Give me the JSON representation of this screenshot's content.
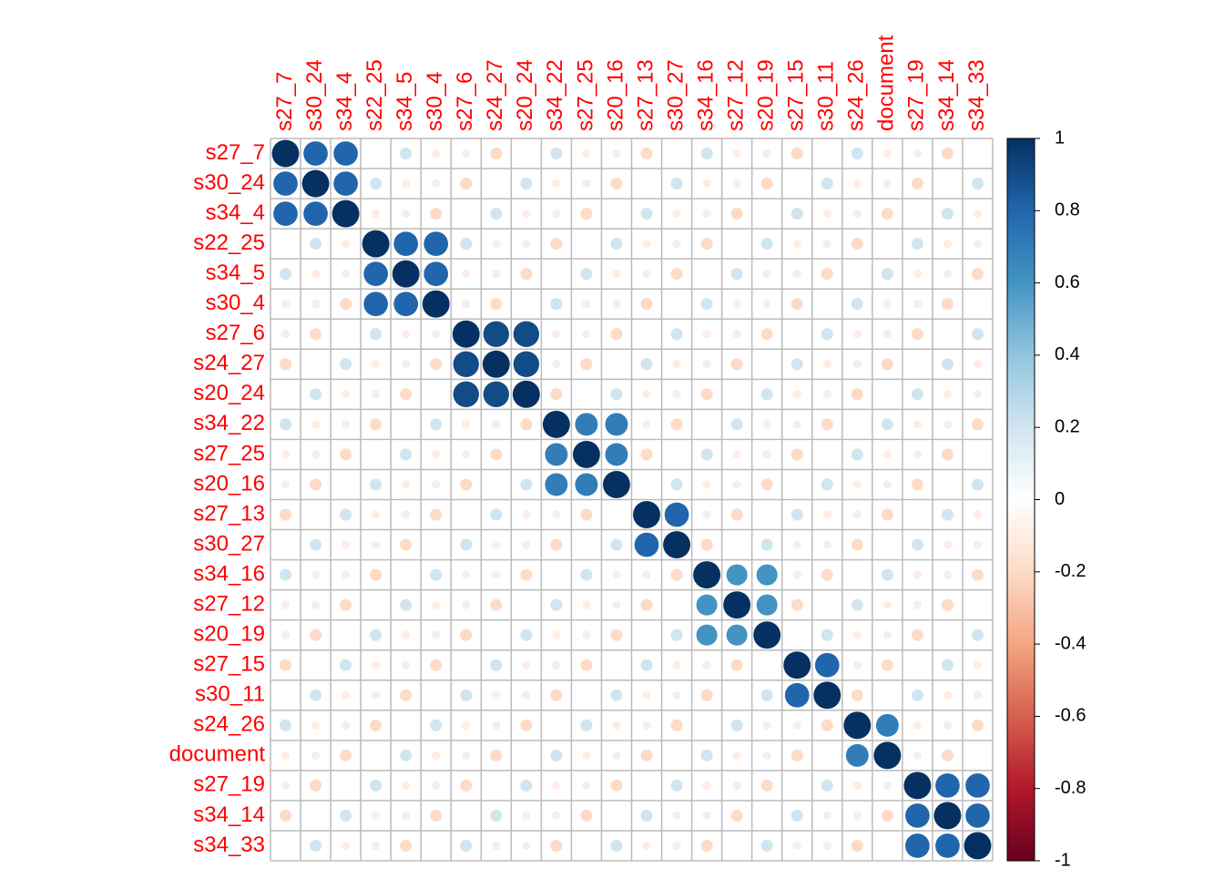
{
  "chart_data": {
    "type": "corrplot",
    "variables": [
      "s27_7",
      "s30_24",
      "s34_4",
      "s22_25",
      "s34_5",
      "s30_4",
      "s27_6",
      "s24_27",
      "s20_24",
      "s34_22",
      "s27_25",
      "s20_16",
      "s27_13",
      "s30_27",
      "s34_16",
      "s27_12",
      "s20_19",
      "s27_15",
      "s30_11",
      "s24_26",
      "document",
      "s27_19",
      "s34_14",
      "s34_33"
    ],
    "matrix": [
      [
        1,
        0.8,
        0.8,
        0,
        0.2,
        -0.1,
        0.1,
        -0.2,
        0,
        0.2,
        -0.1,
        0.1,
        -0.2,
        0,
        0.2,
        -0.1,
        0.1,
        -0.2,
        0,
        0.2,
        -0.1,
        0.1,
        -0.2,
        0
      ],
      [
        0.8,
        1,
        0.8,
        0.2,
        -0.1,
        0.1,
        -0.2,
        0,
        0.2,
        -0.1,
        0.1,
        -0.2,
        0,
        0.2,
        -0.1,
        0.1,
        -0.2,
        0,
        0.2,
        -0.1,
        0.1,
        -0.2,
        0,
        0.2
      ],
      [
        0.8,
        0.8,
        1,
        -0.1,
        0.1,
        -0.2,
        0,
        0.2,
        -0.1,
        0.1,
        -0.2,
        0,
        0.2,
        -0.1,
        0.1,
        -0.2,
        0,
        0.2,
        -0.1,
        0.1,
        -0.2,
        0,
        0.2,
        -0.1
      ],
      [
        0,
        0.2,
        -0.1,
        1,
        0.8,
        0.8,
        0.2,
        -0.1,
        0.1,
        -0.2,
        0,
        0.2,
        -0.1,
        0.1,
        -0.2,
        0,
        0.2,
        -0.1,
        0.1,
        -0.2,
        0,
        0.2,
        -0.1,
        0.1
      ],
      [
        0.2,
        -0.1,
        0.1,
        0.8,
        1,
        0.8,
        -0.1,
        0.1,
        -0.2,
        0,
        0.2,
        -0.1,
        0.1,
        -0.2,
        0,
        0.2,
        -0.1,
        0.1,
        -0.2,
        0,
        0.2,
        -0.1,
        0.1,
        -0.2
      ],
      [
        -0.1,
        0.1,
        -0.2,
        0.8,
        0.8,
        1,
        0.1,
        -0.2,
        0,
        0.2,
        -0.1,
        0.1,
        -0.2,
        0,
        0.2,
        -0.1,
        0.1,
        -0.2,
        0,
        0.2,
        -0.1,
        0.1,
        -0.2,
        0
      ],
      [
        0.1,
        -0.2,
        0,
        0.2,
        -0.1,
        0.1,
        1,
        0.9,
        0.9,
        -0.1,
        0.1,
        -0.2,
        0,
        0.2,
        -0.1,
        0.1,
        -0.2,
        0,
        0.2,
        -0.1,
        0.1,
        -0.2,
        0,
        0.2
      ],
      [
        -0.2,
        0,
        0.2,
        -0.1,
        0.1,
        -0.2,
        0.9,
        1,
        0.9,
        0.1,
        -0.2,
        0,
        0.2,
        -0.1,
        0.1,
        -0.2,
        0,
        0.2,
        -0.1,
        0.1,
        -0.2,
        0,
        0.2,
        -0.1
      ],
      [
        0,
        0.2,
        -0.1,
        0.1,
        -0.2,
        0,
        0.9,
        0.9,
        1,
        -0.2,
        0,
        0.2,
        -0.1,
        0.1,
        -0.2,
        0,
        0.2,
        -0.1,
        0.1,
        -0.2,
        0,
        0.2,
        -0.1,
        0.1
      ],
      [
        0.2,
        -0.1,
        0.1,
        -0.2,
        0,
        0.2,
        -0.1,
        0.1,
        -0.2,
        1,
        0.7,
        0.7,
        0.1,
        -0.2,
        0,
        0.2,
        -0.1,
        0.1,
        -0.2,
        0,
        0.2,
        -0.1,
        0.1,
        -0.2
      ],
      [
        -0.1,
        0.1,
        -0.2,
        0,
        0.2,
        -0.1,
        0.1,
        -0.2,
        0,
        0.7,
        1,
        0.7,
        -0.2,
        0,
        0.2,
        -0.1,
        0.1,
        -0.2,
        0,
        0.2,
        -0.1,
        0.1,
        -0.2,
        0
      ],
      [
        0.1,
        -0.2,
        0,
        0.2,
        -0.1,
        0.1,
        -0.2,
        0,
        0.2,
        0.7,
        0.7,
        1,
        0,
        0.2,
        -0.1,
        0.1,
        -0.2,
        0,
        0.2,
        -0.1,
        0.1,
        -0.2,
        0,
        0.2
      ],
      [
        -0.2,
        0,
        0.2,
        -0.1,
        0.1,
        -0.2,
        0,
        0.2,
        -0.1,
        0.1,
        -0.2,
        0,
        1,
        0.8,
        0.1,
        -0.2,
        0,
        0.2,
        -0.1,
        0.1,
        -0.2,
        0,
        0.2,
        -0.1
      ],
      [
        0,
        0.2,
        -0.1,
        0.1,
        -0.2,
        0,
        0.2,
        -0.1,
        0.1,
        -0.2,
        0,
        0.2,
        0.8,
        1,
        -0.2,
        0,
        0.2,
        -0.1,
        0.1,
        -0.2,
        0,
        0.2,
        -0.1,
        0.1
      ],
      [
        0.2,
        -0.1,
        0.1,
        -0.2,
        0,
        0.2,
        -0.1,
        0.1,
        -0.2,
        0,
        0.2,
        -0.1,
        0.1,
        -0.2,
        1,
        0.6,
        0.6,
        0.1,
        -0.2,
        0,
        0.2,
        -0.1,
        0.1,
        -0.2
      ],
      [
        -0.1,
        0.1,
        -0.2,
        0,
        0.2,
        -0.1,
        0.1,
        -0.2,
        0,
        0.2,
        -0.1,
        0.1,
        -0.2,
        0,
        0.6,
        1,
        0.6,
        -0.2,
        0,
        0.2,
        -0.1,
        0.1,
        -0.2,
        0
      ],
      [
        0.1,
        -0.2,
        0,
        0.2,
        -0.1,
        0.1,
        -0.2,
        0,
        0.2,
        -0.1,
        0.1,
        -0.2,
        0,
        0.2,
        0.6,
        0.6,
        1,
        0,
        0.2,
        -0.1,
        0.1,
        -0.2,
        0,
        0.2
      ],
      [
        -0.2,
        0,
        0.2,
        -0.1,
        0.1,
        -0.2,
        0,
        0.2,
        -0.1,
        0.1,
        -0.2,
        0,
        0.2,
        -0.1,
        0.1,
        -0.2,
        0,
        1,
        0.8,
        0.1,
        -0.2,
        0,
        0.2,
        -0.1
      ],
      [
        0,
        0.2,
        -0.1,
        0.1,
        -0.2,
        0,
        0.2,
        -0.1,
        0.1,
        -0.2,
        0,
        0.2,
        -0.1,
        0.1,
        -0.2,
        0,
        0.2,
        0.8,
        1,
        -0.2,
        0,
        0.2,
        -0.1,
        0.1
      ],
      [
        0.2,
        -0.1,
        0.1,
        -0.2,
        0,
        0.2,
        -0.1,
        0.1,
        -0.2,
        0,
        0.2,
        -0.1,
        0.1,
        -0.2,
        0,
        0.2,
        -0.1,
        0.1,
        -0.2,
        1,
        0.7,
        -0.1,
        0.1,
        -0.2
      ],
      [
        -0.1,
        0.1,
        -0.2,
        0,
        0.2,
        -0.1,
        0.1,
        -0.2,
        0,
        0.2,
        -0.1,
        0.1,
        -0.2,
        0,
        0.2,
        -0.1,
        0.1,
        -0.2,
        0,
        0.7,
        1,
        0.1,
        -0.2,
        0
      ],
      [
        0.1,
        -0.2,
        0,
        0.2,
        -0.1,
        0.1,
        -0.2,
        0,
        0.2,
        -0.1,
        0.1,
        -0.2,
        0,
        0.2,
        -0.1,
        0.1,
        -0.2,
        0,
        0.2,
        -0.1,
        0.1,
        1,
        0.8,
        0.8
      ],
      [
        -0.2,
        0,
        0.2,
        -0.1,
        0.1,
        -0.2,
        0,
        0.2,
        -0.1,
        0.1,
        -0.2,
        0,
        0.2,
        -0.1,
        0.1,
        -0.2,
        0,
        0.2,
        -0.1,
        0.1,
        -0.2,
        0.8,
        1,
        0.8
      ],
      [
        0,
        0.2,
        -0.1,
        0.1,
        -0.2,
        0,
        0.2,
        -0.1,
        0.1,
        -0.2,
        0,
        0.2,
        -0.1,
        0.1,
        -0.2,
        0,
        0.2,
        -0.1,
        0.1,
        -0.2,
        0,
        0.8,
        0.8,
        1
      ]
    ],
    "zlim": [
      -1,
      1
    ],
    "zticks": [
      -1,
      -0.8,
      -0.6,
      -0.4,
      -0.2,
      0,
      0.2,
      0.4,
      0.6,
      0.8,
      1
    ],
    "colormap": [
      "#67001F",
      "#B2182B",
      "#D6604D",
      "#F4A582",
      "#FDDBC7",
      "#FFFFFF",
      "#D1E5F0",
      "#92C5DE",
      "#4393C3",
      "#2166AC",
      "#053061"
    ],
    "label_color": "#ff0000",
    "grid": true
  }
}
